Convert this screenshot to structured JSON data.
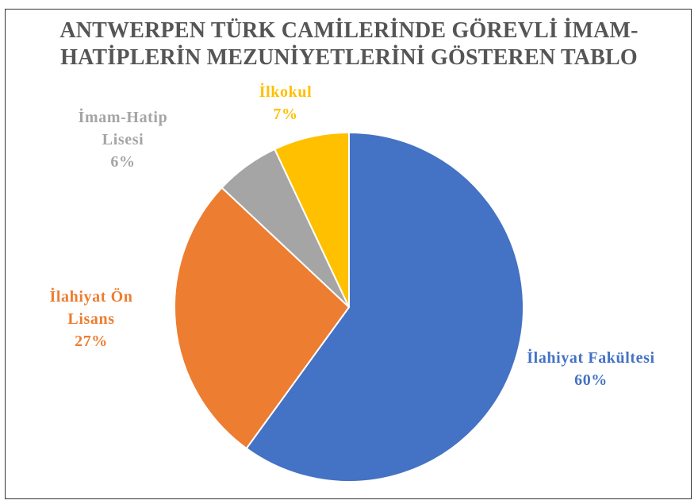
{
  "chart_data": {
    "type": "pie",
    "title_lines": [
      "ANTWERPEN TÜRK CAMİLERİNDE GÖREVLİ  İMAM-",
      "HATİPLERİN MEZUNİYETLERİNİ GÖSTEREN TABLO"
    ],
    "slices": [
      {
        "label_lines": [
          "İlahiyat  Fakültesi"
        ],
        "value": 60,
        "value_label": "60%",
        "color": "#4472C4",
        "label_color": "#4472C4"
      },
      {
        "label_lines": [
          "İlahiyat  Ön",
          "Lisans"
        ],
        "value": 27,
        "value_label": "27%",
        "color": "#ED7D31",
        "label_color": "#ED7D31"
      },
      {
        "label_lines": [
          "İmam-Hatip",
          "Lisesi"
        ],
        "value": 6,
        "value_label": "6%",
        "color": "#A5A5A5",
        "label_color": "#A5A5A5"
      },
      {
        "label_lines": [
          "İlkokul"
        ],
        "value": 7,
        "value_label": "7%",
        "color": "#FFC000",
        "label_color": "#FFC000"
      }
    ],
    "start_angle_deg": 0,
    "direction": "clockwise",
    "legend": "none"
  }
}
